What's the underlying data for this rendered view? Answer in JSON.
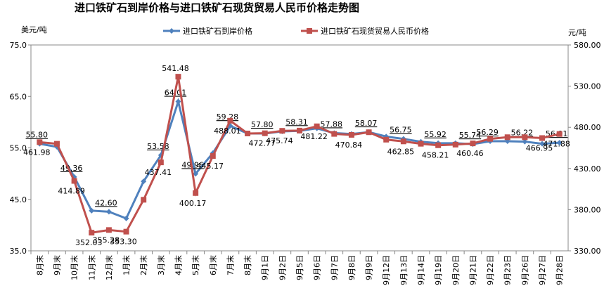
{
  "chart_data": {
    "type": "line",
    "title": "进口铁矿石到岸价格与进口铁矿石现货贸易人民币价格走势图",
    "y_label": "美元/吨",
    "y2_label": "元/吨",
    "categories": [
      "8月末",
      "9月末",
      "10月末",
      "11月末",
      "12月末",
      "1月末",
      "2月末",
      "3月末",
      "4月末",
      "5月末",
      "6月末",
      "7月末",
      "8月末",
      "9月1日",
      "9月2日",
      "9月5日",
      "9月6日",
      "9月7日",
      "9月8日",
      "9月9日",
      "9月12日",
      "9月13日",
      "9月14日",
      "9月19日",
      "9月20日",
      "9月21日",
      "9月22日",
      "9月23日",
      "9月26日",
      "9月27日",
      "9月28日"
    ],
    "series": [
      {
        "name": "进口铁矿石到岸价格",
        "color": "#4f81bd",
        "axis": "y",
        "values": [
          55.8,
          55.2,
          49.36,
          42.8,
          42.6,
          41.3,
          48.5,
          53.58,
          64.01,
          49.96,
          54.0,
          59.28,
          57.8,
          57.8,
          58.2,
          58.31,
          58.8,
          57.88,
          57.7,
          58.07,
          57.2,
          56.75,
          56.2,
          55.92,
          55.9,
          55.74,
          56.29,
          56.3,
          56.22,
          55.8,
          56.01
        ],
        "value_labels": [
          "55.80",
          null,
          "49.36",
          null,
          "42.60",
          null,
          null,
          "53.58",
          "64.01",
          "49.96",
          null,
          "59.28",
          null,
          "57.80",
          null,
          "58.31",
          null,
          "57.88",
          null,
          "58.07",
          null,
          "56.75",
          null,
          "55.92",
          null,
          "55.74",
          "56.29",
          null,
          "56.22",
          null,
          "56.01"
        ]
      },
      {
        "name": "进口铁矿石现货贸易人民币价格",
        "color": "#c0504d",
        "axis": "y2",
        "values": [
          461.98,
          460,
          414.89,
          352.03,
          355.28,
          353.3,
          392,
          437.41,
          541.48,
          400.17,
          445.17,
          488.01,
          472.5,
          472.77,
          475.74,
          476,
          481.22,
          472,
          470.84,
          474,
          465,
          462.85,
          460,
          458.21,
          459,
          460.46,
          466,
          468,
          468,
          466.95,
          471.88
        ],
        "value_labels": [
          "461.98",
          null,
          "414.89",
          "352.03",
          "355.28",
          "353.30",
          null,
          "437.41",
          "541.48",
          "400.17",
          "445.17",
          "488.01",
          null,
          "472.77",
          "475.74",
          null,
          "481.22",
          null,
          "470.84",
          null,
          null,
          "462.85",
          null,
          "458.21",
          null,
          "460.46",
          null,
          null,
          null,
          "466.95",
          "471.88"
        ]
      }
    ],
    "ylim": [
      35,
      75
    ],
    "yticks": [
      {
        "value": 35,
        "label": "35.0"
      },
      {
        "value": 45,
        "label": "45.0"
      },
      {
        "value": 55,
        "label": "55.0"
      },
      {
        "value": 65,
        "label": "65.0"
      },
      {
        "value": 75,
        "label": "75.0"
      }
    ],
    "y2lim": [
      330,
      580
    ],
    "y2ticks": [
      {
        "value": 330,
        "label": "330.00"
      },
      {
        "value": 380,
        "label": "380.00"
      },
      {
        "value": 430,
        "label": "430.00"
      },
      {
        "value": 480,
        "label": "480.00"
      },
      {
        "value": 530,
        "label": "530.00"
      },
      {
        "value": 580,
        "label": "580.00"
      }
    ],
    "legend": "top"
  }
}
